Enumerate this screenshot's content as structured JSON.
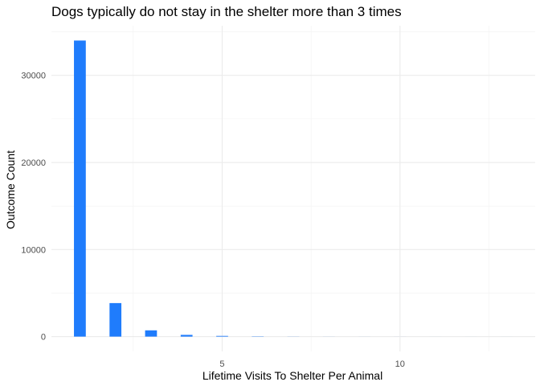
{
  "chart_data": {
    "type": "bar",
    "title": "Dogs typically do not stay in the shelter more than 3 times",
    "xlabel": "Lifetime Visits To Shelter Per Animal",
    "ylabel": "Outcome Count",
    "x_ticks": [
      5,
      10
    ],
    "y_ticks": [
      0,
      10000,
      20000,
      30000
    ],
    "xlim": [
      0.2,
      13.8
    ],
    "ylim": [
      -1700,
      35700
    ],
    "grid": true,
    "bar_color": "#1f7cfc",
    "x": [
      1,
      2,
      3,
      4,
      5,
      6,
      7,
      8,
      9,
      10,
      11,
      12,
      13
    ],
    "values": [
      34000,
      3850,
      720,
      200,
      80,
      30,
      10,
      5,
      3,
      2,
      1,
      1,
      1
    ]
  }
}
